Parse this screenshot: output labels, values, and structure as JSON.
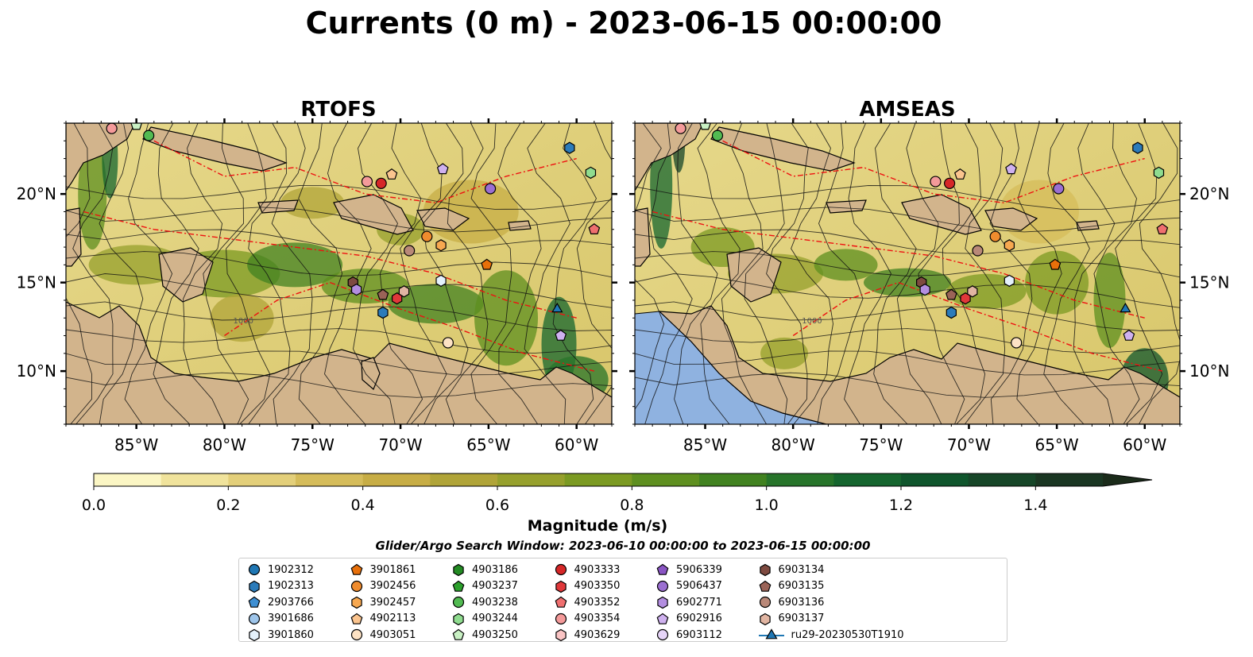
{
  "figure": {
    "title": "Currents (0 m) - 2023-06-15 00:00:00",
    "search_window": "Glider/Argo Search Window: 2023-06-10 00:00:00 to 2023-06-15 00:00:00"
  },
  "chart_data": [
    {
      "type": "heatmap",
      "title": "RTOFS",
      "variable": "surface current magnitude with streamlines",
      "xlim": [
        -89,
        -58
      ],
      "ylim": [
        7,
        24
      ],
      "x_ticks": [
        "85°W",
        "80°W",
        "75°W",
        "70°W",
        "65°W",
        "60°W"
      ],
      "y_ticks": [
        "20°N",
        "15°N",
        "10°N"
      ],
      "contour_label": "1000"
    },
    {
      "type": "heatmap",
      "title": "AMSEAS",
      "variable": "surface current magnitude with streamlines",
      "xlim": [
        -89,
        -58
      ],
      "ylim": [
        7,
        24
      ],
      "x_ticks": [
        "85°W",
        "80°W",
        "75°W",
        "70°W",
        "65°W",
        "60°W"
      ],
      "y_ticks": [
        "20°N",
        "15°N",
        "10°N"
      ],
      "contour_label": "1000"
    }
  ],
  "colorbar": {
    "label": "Magnitude (m/s)",
    "min": 0.0,
    "max": 1.5,
    "extend": "max",
    "ticks": [
      "0.0",
      "0.2",
      "0.4",
      "0.6",
      "0.8",
      "1.0",
      "1.2",
      "1.4"
    ],
    "colors": [
      "#fbf6c4",
      "#f0e39c",
      "#e3cf7a",
      "#d5bc5a",
      "#c7ad45",
      "#b0a438",
      "#96a02c",
      "#7b9a22",
      "#5e8f1f",
      "#418220",
      "#27742a",
      "#15652e",
      "#0f552c",
      "#164628",
      "#1a3622",
      "#1b2b1a"
    ]
  },
  "legend": {
    "items": [
      {
        "label": "1902312",
        "marker": "circle",
        "color": "#1f77b4"
      },
      {
        "label": "1902313",
        "marker": "hexagon",
        "color": "#2b7bba"
      },
      {
        "label": "2903766",
        "marker": "pentagon",
        "color": "#3f8fd2"
      },
      {
        "label": "3901686",
        "marker": "circle",
        "color": "#9ec5ea"
      },
      {
        "label": "3901860",
        "marker": "hexagon",
        "color": "#e4f1fb"
      },
      {
        "label": "3901861",
        "marker": "pentagon",
        "color": "#e8700a"
      },
      {
        "label": "3902456",
        "marker": "circle",
        "color": "#f08c2e"
      },
      {
        "label": "3902457",
        "marker": "hexagon",
        "color": "#f7a850"
      },
      {
        "label": "4902113",
        "marker": "pentagon",
        "color": "#fbc48e"
      },
      {
        "label": "4903051",
        "marker": "circle",
        "color": "#fde2c4"
      },
      {
        "label": "4903186",
        "marker": "hexagon",
        "color": "#238b23"
      },
      {
        "label": "4903237",
        "marker": "pentagon",
        "color": "#2ca02c"
      },
      {
        "label": "4903238",
        "marker": "circle",
        "color": "#52bb52"
      },
      {
        "label": "4903244",
        "marker": "hexagon",
        "color": "#8fdc8f"
      },
      {
        "label": "4903250",
        "marker": "pentagon",
        "color": "#c9f1c4"
      },
      {
        "label": "4903333",
        "marker": "circle",
        "color": "#d62728"
      },
      {
        "label": "4903350",
        "marker": "hexagon",
        "color": "#e0383a"
      },
      {
        "label": "4903352",
        "marker": "pentagon",
        "color": "#ef6f6f"
      },
      {
        "label": "4903354",
        "marker": "circle",
        "color": "#f49a9a"
      },
      {
        "label": "4903629",
        "marker": "hexagon",
        "color": "#fac4c4"
      },
      {
        "label": "5906339",
        "marker": "pentagon",
        "color": "#8a55c4"
      },
      {
        "label": "5906437",
        "marker": "circle",
        "color": "#9b6fd1"
      },
      {
        "label": "6902771",
        "marker": "hexagon",
        "color": "#b38ee0"
      },
      {
        "label": "6902916",
        "marker": "pentagon",
        "color": "#cfb1ef"
      },
      {
        "label": "6903112",
        "marker": "circle",
        "color": "#e6d4f8"
      },
      {
        "label": "6903134",
        "marker": "hexagon",
        "color": "#7e4a40"
      },
      {
        "label": "6903135",
        "marker": "pentagon",
        "color": "#9a6357"
      },
      {
        "label": "6903136",
        "marker": "circle",
        "color": "#b98878"
      },
      {
        "label": "6903137",
        "marker": "hexagon",
        "color": "#e1b5a2"
      },
      {
        "label": "ru29-20230530T1910",
        "marker": "triangle-line",
        "color": "#1f77b4"
      }
    ]
  }
}
